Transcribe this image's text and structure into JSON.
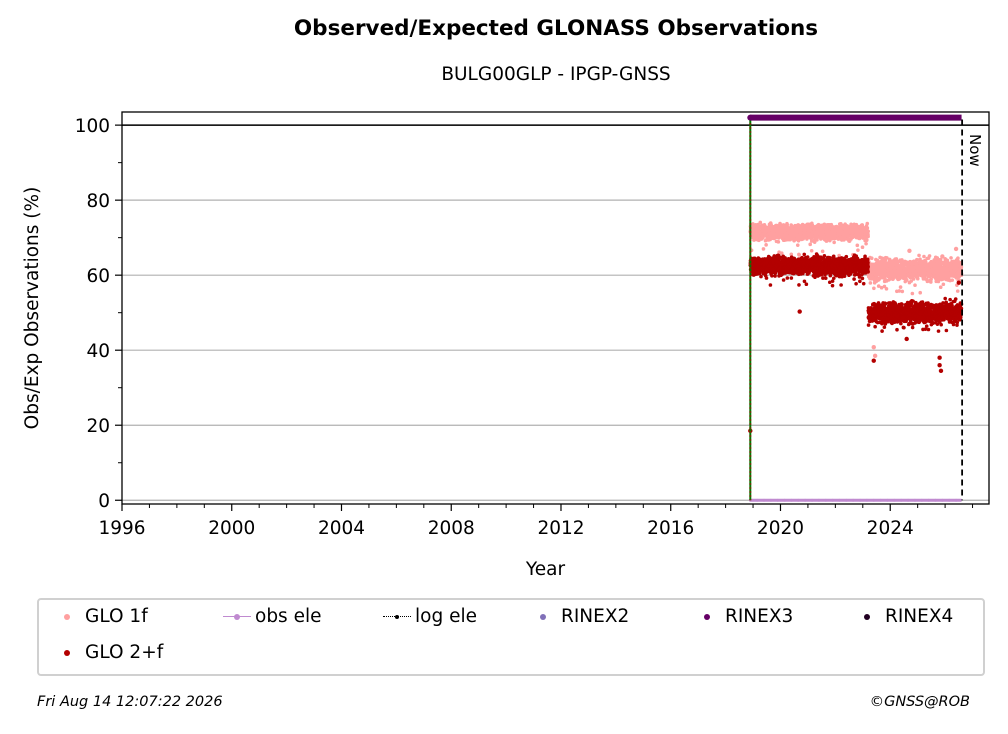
{
  "chart_data": {
    "type": "scatter",
    "title": "Observed/Expected GLONASS Observations",
    "subtitle": "BULG00GLP - IPGP-GNSS",
    "xlabel": "Year",
    "ylabel": "Obs/Exp Observations (%)",
    "xlim": [
      1996,
      2027.6
    ],
    "ylim": [
      -1,
      103.5
    ],
    "xticks": [
      "1996",
      "2000",
      "2004",
      "2008",
      "2012",
      "2016",
      "2020",
      "2024"
    ],
    "yticks": [
      "0",
      "20",
      "40",
      "60",
      "80",
      "100"
    ],
    "grid": "horizontal",
    "reference_line_y": 100,
    "now_label": "Now",
    "now_x": 2026.62,
    "station_start_x": 2018.9,
    "series": [
      {
        "name": "GLO 1f",
        "color": "#ffa0a0",
        "segments": [
          {
            "x": [
              2018.9,
              2023.2
            ],
            "level": 71.5,
            "spread": 1.8,
            "low": 65
          },
          {
            "x": [
              2023.2,
              2026.6
            ],
            "level": 61.5,
            "spread": 2.5,
            "low": 55
          }
        ],
        "points": [
          [
            2023.4,
            40.8
          ],
          [
            2023.45,
            38.5
          ],
          [
            2024.7,
            66.5
          ],
          [
            2025.9,
            65
          ],
          [
            2026.4,
            67
          ]
        ]
      },
      {
        "name": "GLO 2+f",
        "color": "#b30000",
        "segments": [
          {
            "x": [
              2018.9,
              2023.2
            ],
            "level": 62.5,
            "spread": 2.2,
            "low": 57
          },
          {
            "x": [
              2023.2,
              2026.6
            ],
            "level": 50,
            "spread": 2.5,
            "low": 45
          }
        ],
        "points": [
          [
            2018.9,
            18.5
          ],
          [
            2020.7,
            50.3
          ],
          [
            2023.4,
            37.2
          ],
          [
            2024.6,
            43
          ],
          [
            2025.8,
            36
          ],
          [
            2025.85,
            34.5
          ],
          [
            2025.8,
            38
          ],
          [
            2026.5,
            58
          ]
        ]
      },
      {
        "name": "obs ele",
        "color": "#c08ad0",
        "x_range": [
          2018.9,
          2026.6
        ],
        "y": 0
      },
      {
        "name": "log ele",
        "color": "#000000"
      },
      {
        "name": "RINEX2",
        "color": "#8070b8"
      },
      {
        "name": "RINEX3",
        "color": "#660066",
        "x_range": [
          2018.9,
          2026.6
        ],
        "y": 102
      },
      {
        "name": "RINEX4",
        "color": "#220022"
      }
    ]
  },
  "legend": [
    {
      "label": "GLO 1f",
      "color": "#ffa0a0",
      "style": "dot"
    },
    {
      "label": "obs ele",
      "color": "#c08ad0",
      "style": "line-dot"
    },
    {
      "label": "log ele",
      "color": "#000000",
      "style": "dash-dot"
    },
    {
      "label": "RINEX2",
      "color": "#8070b8",
      "style": "dot"
    },
    {
      "label": "RINEX3",
      "color": "#660066",
      "style": "dot"
    },
    {
      "label": "RINEX4",
      "color": "#220022",
      "style": "dot"
    },
    {
      "label": "GLO 2+f",
      "color": "#b30000",
      "style": "dot"
    }
  ],
  "footer": {
    "date": "Fri Aug 14 12:07:22 2026",
    "copyright": "©GNSS@ROB"
  },
  "colors": {
    "station_start_line": "#007700",
    "station_start_dots": "#b30000",
    "grid": "#b0b0b0"
  }
}
